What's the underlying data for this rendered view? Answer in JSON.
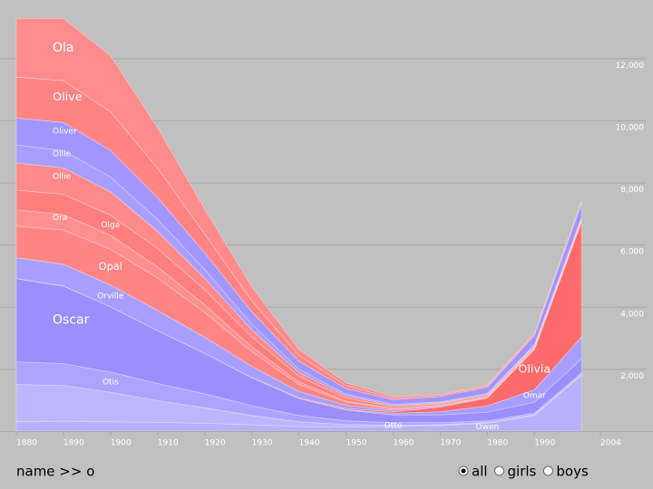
{
  "chart_data": {
    "type": "stacked-area",
    "x": [
      1880,
      1890,
      1900,
      1910,
      1920,
      1930,
      1940,
      1950,
      1960,
      1970,
      1980,
      1990,
      2000
    ],
    "xlim": [
      1880,
      2004
    ],
    "xticks": [
      1880,
      1890,
      1900,
      1910,
      1920,
      1930,
      1940,
      1950,
      1960,
      1970,
      1980,
      1990,
      2004
    ],
    "ylim": [
      0,
      13350
    ],
    "yticks": [
      {
        "value": 2000,
        "label": "2,000"
      },
      {
        "value": 4000,
        "label": "4,000"
      },
      {
        "value": 6000,
        "label": "6,000"
      },
      {
        "value": 8000,
        "label": "8,000"
      },
      {
        "value": 10000,
        "label": "10,000"
      },
      {
        "value": 12000,
        "label": "12,000"
      }
    ],
    "grid": true,
    "series": [
      {
        "name": "Owen",
        "color": "#b9b0ff",
        "values": [
          300,
          320,
          300,
          280,
          250,
          200,
          150,
          130,
          150,
          180,
          250,
          500,
          1800
        ]
      },
      {
        "name": "Otto",
        "color": "#bdb6ff",
        "values": [
          1200,
          1150,
          950,
          700,
          500,
          300,
          150,
          80,
          40,
          30,
          30,
          30,
          30
        ]
      },
      {
        "name": "Otis",
        "color": "#aca4ff",
        "values": [
          730,
          700,
          650,
          550,
          450,
          320,
          200,
          120,
          80,
          60,
          50,
          50,
          50
        ]
      },
      {
        "name": "Oscar",
        "color": "#9a8fff",
        "values": [
          2680,
          2500,
          2100,
          1700,
          1300,
          900,
          550,
          350,
          250,
          250,
          280,
          350,
          450
        ]
      },
      {
        "name": "Omar",
        "color": "#a69dff",
        "values": [
          0,
          0,
          0,
          0,
          0,
          0,
          0,
          10,
          50,
          100,
          200,
          400,
          700
        ]
      },
      {
        "name": "Olivia",
        "color": "#ff6b6b",
        "values": [
          0,
          0,
          0,
          0,
          0,
          0,
          20,
          40,
          50,
          150,
          250,
          1300,
          3700
        ]
      },
      {
        "name": "Orville",
        "color": "#a79fff",
        "values": [
          670,
          700,
          700,
          650,
          520,
          360,
          200,
          100,
          50,
          30,
          20,
          20,
          20
        ]
      },
      {
        "name": "Opal",
        "color": "#ff8585",
        "values": [
          1020,
          1100,
          1150,
          1050,
          800,
          480,
          230,
          100,
          40,
          30,
          20,
          20,
          20
        ]
      },
      {
        "name": "Ora",
        "color": "#ff9090",
        "values": [
          520,
          500,
          450,
          350,
          250,
          150,
          80,
          40,
          20,
          10,
          10,
          10,
          10
        ]
      },
      {
        "name": "Olga",
        "color": "#ff7f7f",
        "values": [
          640,
          650,
          650,
          600,
          480,
          320,
          180,
          90,
          50,
          40,
          40,
          40,
          40
        ]
      },
      {
        "name": "Ollie",
        "color": "#ff8a8a",
        "values": [
          870,
          850,
          750,
          550,
          370,
          230,
          130,
          70,
          40,
          30,
          30,
          30,
          30
        ]
      },
      {
        "name": "Ollie",
        "color": "#a79fff",
        "values": [
          580,
          560,
          480,
          380,
          280,
          180,
          100,
          60,
          40,
          30,
          30,
          30,
          30
        ]
      },
      {
        "name": "Oliver",
        "color": "#a196ff",
        "values": [
          870,
          900,
          850,
          700,
          540,
          400,
          260,
          180,
          150,
          170,
          200,
          300,
          450
        ]
      },
      {
        "name": "Olive",
        "color": "#ff8383",
        "values": [
          1310,
          1350,
          1250,
          950,
          600,
          350,
          180,
          90,
          50,
          40,
          40,
          50,
          60
        ]
      },
      {
        "name": "Ola",
        "color": "#ff8c8c",
        "values": [
          1890,
          2000,
          1800,
          1300,
          800,
          450,
          200,
          90,
          50,
          30,
          30,
          30,
          30
        ]
      }
    ]
  },
  "ui": {
    "query": "name >> o",
    "filters": [
      "all",
      "girls",
      "boys"
    ],
    "selected": "all"
  }
}
